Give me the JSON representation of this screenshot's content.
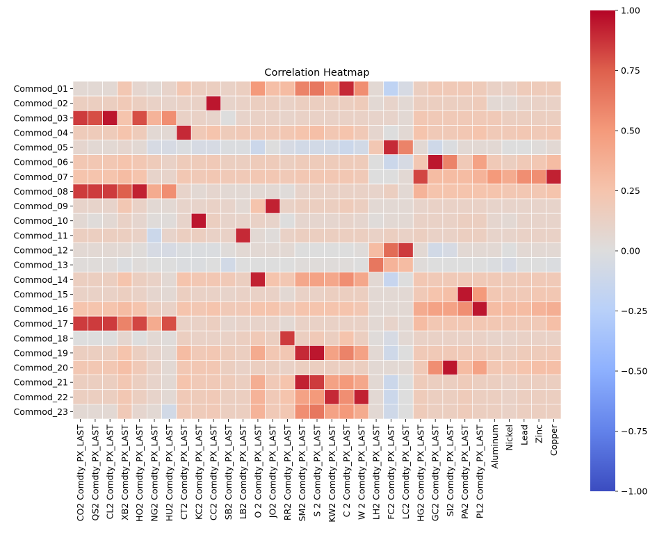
{
  "chart_data": {
    "type": "heatmap",
    "title": "Correlation Heatmap",
    "xlabel": "",
    "ylabel": "",
    "colormap": "coolwarm",
    "vmin": -1.0,
    "vmax": 1.0,
    "colorbar_ticks": [
      "1.00",
      "0.75",
      "0.50",
      "0.25",
      "0.00",
      "−0.25",
      "−0.50",
      "−0.75",
      "−1.00"
    ],
    "colorbar_tick_values": [
      1.0,
      0.75,
      0.5,
      0.25,
      0.0,
      -0.25,
      -0.5,
      -0.75,
      -1.0
    ],
    "rows": [
      "Commod_01",
      "Commod_02",
      "Commod_03",
      "Commod_04",
      "Commod_05",
      "Commod_06",
      "Commod_07",
      "Commod_08",
      "Commod_09",
      "Commod_10",
      "Commod_11",
      "Commod_12",
      "Commod_13",
      "Commod_14",
      "Commod_15",
      "Commod_16",
      "Commod_17",
      "Commod_18",
      "Commod_19",
      "Commod_20",
      "Commod_21",
      "Commod_22",
      "Commod_23"
    ],
    "columns": [
      "CO2 Comdty_PX_LAST",
      "QS2 Comdty_PX_LAST",
      "CL2 Comdty_PX_LAST",
      "XB2 Comdty_PX_LAST",
      "HO2 Comdty_PX_LAST",
      "NG2 Comdty_PX_LAST",
      "HU2 Comdty_PX_LAST",
      "CT2 Comdty_PX_LAST",
      "KC2 Comdty_PX_LAST",
      "CC2 Comdty_PX_LAST",
      "SB2 Comdty_PX_LAST",
      "LB2 Comdty_PX_LAST",
      "O 2 Comdty_PX_LAST",
      "JO2 Comdty_PX_LAST",
      "RR2 Comdty_PX_LAST",
      "SM2 Comdty_PX_LAST",
      "S 2 Comdty_PX_LAST",
      "KW2 Comdty_PX_LAST",
      "C 2 Comdty_PX_LAST",
      "W 2 Comdty_PX_LAST",
      "LH2 Comdty_PX_LAST",
      "FC2 Comdty_PX_LAST",
      "LC2 Comdty_PX_LAST",
      "HG2 Comdty_PX_LAST",
      "GC2 Comdty_PX_LAST",
      "SI2 Comdty_PX_LAST",
      "PA2 Comdty_PX_LAST",
      "PL2 Comdty_PX_LAST",
      "Aluminum",
      "Nickel",
      "Lead",
      "Zinc",
      "Copper"
    ],
    "values": [
      [
        0.05,
        0.05,
        0.05,
        0.22,
        0.08,
        0.05,
        0.1,
        0.22,
        0.15,
        0.15,
        0.12,
        0.15,
        0.5,
        0.28,
        0.3,
        0.6,
        0.65,
        0.5,
        0.9,
        0.55,
        0.05,
        -0.2,
        -0.05,
        0.15,
        0.2,
        0.2,
        0.2,
        0.18,
        0.12,
        0.12,
        0.18,
        0.18,
        0.18
      ],
      [
        0.15,
        0.15,
        0.15,
        0.2,
        0.15,
        0.12,
        0.1,
        0.12,
        0.12,
        0.95,
        0.1,
        0.12,
        0.15,
        0.15,
        0.12,
        0.15,
        0.15,
        0.15,
        0.15,
        0.18,
        0.05,
        0.1,
        0.05,
        0.15,
        0.15,
        0.15,
        0.15,
        0.18,
        0.05,
        0.05,
        0.1,
        0.12,
        0.12
      ],
      [
        0.85,
        0.8,
        0.95,
        0.25,
        0.8,
        0.35,
        0.55,
        0.12,
        0.12,
        0.1,
        0.0,
        0.1,
        0.12,
        0.12,
        0.1,
        0.12,
        0.12,
        0.12,
        0.12,
        0.12,
        0.1,
        0.1,
        0.05,
        0.22,
        0.2,
        0.2,
        0.2,
        0.2,
        0.2,
        0.15,
        0.15,
        0.15,
        0.15
      ],
      [
        0.18,
        0.18,
        0.18,
        0.25,
        0.18,
        0.05,
        0.05,
        0.9,
        0.2,
        0.25,
        0.18,
        0.2,
        0.2,
        0.2,
        0.22,
        0.25,
        0.28,
        0.22,
        0.25,
        0.2,
        0.08,
        0.0,
        0.05,
        0.25,
        0.2,
        0.2,
        0.22,
        0.25,
        0.2,
        0.2,
        0.22,
        0.2,
        0.22
      ],
      [
        0.08,
        0.05,
        0.05,
        0.08,
        0.05,
        -0.05,
        -0.05,
        -0.02,
        -0.05,
        -0.05,
        -0.02,
        -0.02,
        -0.12,
        0.0,
        -0.05,
        -0.08,
        -0.08,
        -0.08,
        -0.12,
        -0.08,
        0.22,
        0.9,
        0.6,
        0.05,
        -0.1,
        -0.02,
        0.05,
        0.05,
        0.05,
        0.0,
        0.0,
        0.02,
        0.05
      ],
      [
        0.22,
        0.22,
        0.22,
        0.25,
        0.22,
        0.18,
        0.12,
        0.18,
        0.18,
        0.2,
        0.15,
        0.15,
        0.18,
        0.18,
        0.15,
        0.18,
        0.18,
        0.18,
        0.18,
        0.18,
        0.0,
        -0.12,
        -0.05,
        0.22,
        0.95,
        0.6,
        0.2,
        0.45,
        0.2,
        0.15,
        0.2,
        0.22,
        0.3
      ],
      [
        0.25,
        0.25,
        0.25,
        0.3,
        0.25,
        0.1,
        0.1,
        0.22,
        0.2,
        0.22,
        0.2,
        0.2,
        0.22,
        0.22,
        0.2,
        0.22,
        0.22,
        0.22,
        0.22,
        0.2,
        0.0,
        0.0,
        0.05,
        0.82,
        0.3,
        0.3,
        0.3,
        0.35,
        0.5,
        0.4,
        0.55,
        0.55,
        0.92
      ],
      [
        0.85,
        0.85,
        0.85,
        0.75,
        0.92,
        0.4,
        0.55,
        0.1,
        0.05,
        0.08,
        0.05,
        0.05,
        0.05,
        0.05,
        0.02,
        0.1,
        0.12,
        0.12,
        0.12,
        0.12,
        0.1,
        0.15,
        0.05,
        0.35,
        0.25,
        0.25,
        0.25,
        0.25,
        0.25,
        0.22,
        0.22,
        0.22,
        0.25
      ],
      [
        0.1,
        0.1,
        0.1,
        0.22,
        0.12,
        0.05,
        0.05,
        0.1,
        0.1,
        0.12,
        0.1,
        0.05,
        0.25,
        0.92,
        0.12,
        0.15,
        0.15,
        0.15,
        0.18,
        0.15,
        0.05,
        0.05,
        0.05,
        0.1,
        0.12,
        0.12,
        0.12,
        0.12,
        0.1,
        0.1,
        0.1,
        0.1,
        0.1
      ],
      [
        0.05,
        0.02,
        0.05,
        0.12,
        0.08,
        0.02,
        0.02,
        0.1,
        0.95,
        0.15,
        0.1,
        0.1,
        0.12,
        0.1,
        0.0,
        0.08,
        0.08,
        0.08,
        0.1,
        0.08,
        0.02,
        0.05,
        0.05,
        0.12,
        0.12,
        0.12,
        0.15,
        0.15,
        0.08,
        0.05,
        0.1,
        0.1,
        0.1
      ],
      [
        0.15,
        0.15,
        0.15,
        0.15,
        0.12,
        -0.12,
        0.1,
        0.15,
        0.15,
        0.12,
        0.12,
        0.9,
        0.05,
        0.02,
        0.12,
        0.15,
        0.15,
        0.15,
        0.15,
        0.15,
        0.12,
        0.15,
        0.12,
        0.15,
        0.12,
        0.12,
        0.15,
        0.15,
        0.1,
        0.1,
        0.12,
        0.12,
        0.12
      ],
      [
        0.05,
        0.05,
        0.05,
        0.05,
        0.02,
        -0.05,
        -0.05,
        -0.02,
        -0.02,
        -0.02,
        0.02,
        0.05,
        0.05,
        0.05,
        0.05,
        0.0,
        0.0,
        0.0,
        0.0,
        0.02,
        0.3,
        0.7,
        0.85,
        0.05,
        -0.08,
        -0.05,
        0.05,
        0.05,
        0.05,
        0.0,
        0.05,
        0.05,
        0.05
      ],
      [
        0.02,
        0.02,
        0.02,
        -0.02,
        0.02,
        0.0,
        0.0,
        -0.02,
        -0.02,
        0.0,
        -0.08,
        0.0,
        0.0,
        0.0,
        0.0,
        0.02,
        0.02,
        0.02,
        0.02,
        0.0,
        0.65,
        0.35,
        0.3,
        0.02,
        0.0,
        0.0,
        0.0,
        0.0,
        -0.02,
        -0.05,
        0.0,
        0.0,
        -0.02
      ],
      [
        0.15,
        0.15,
        0.15,
        0.25,
        0.15,
        0.12,
        0.05,
        0.25,
        0.22,
        0.22,
        0.2,
        0.15,
        0.92,
        0.25,
        0.22,
        0.42,
        0.45,
        0.42,
        0.55,
        0.42,
        0.05,
        -0.15,
        0.0,
        0.22,
        0.2,
        0.2,
        0.2,
        0.2,
        0.2,
        0.18,
        0.2,
        0.2,
        0.2
      ],
      [
        0.12,
        0.12,
        0.12,
        0.15,
        0.12,
        0.08,
        0.05,
        0.15,
        0.12,
        0.12,
        0.1,
        0.12,
        0.12,
        0.12,
        0.05,
        0.12,
        0.12,
        0.15,
        0.15,
        0.15,
        0.05,
        0.05,
        0.05,
        0.2,
        0.25,
        0.28,
        0.95,
        0.5,
        0.22,
        0.2,
        0.2,
        0.22,
        0.22
      ],
      [
        0.25,
        0.25,
        0.25,
        0.3,
        0.25,
        0.15,
        0.12,
        0.25,
        0.22,
        0.25,
        0.2,
        0.2,
        0.25,
        0.25,
        0.2,
        0.25,
        0.25,
        0.25,
        0.25,
        0.22,
        0.05,
        0.05,
        0.05,
        0.4,
        0.45,
        0.45,
        0.55,
        0.95,
        0.3,
        0.3,
        0.3,
        0.35,
        0.38
      ],
      [
        0.85,
        0.85,
        0.85,
        0.6,
        0.82,
        0.4,
        0.8,
        0.12,
        0.12,
        0.15,
        0.08,
        0.1,
        0.1,
        0.1,
        0.05,
        0.12,
        0.12,
        0.12,
        0.12,
        0.12,
        0.05,
        0.1,
        0.05,
        0.3,
        0.22,
        0.22,
        0.22,
        0.22,
        0.22,
        0.2,
        0.2,
        0.2,
        0.28
      ],
      [
        0.0,
        0.0,
        0.0,
        0.08,
        0.0,
        0.05,
        0.02,
        0.15,
        0.12,
        0.12,
        0.12,
        0.15,
        0.2,
        0.15,
        0.85,
        0.15,
        0.2,
        0.15,
        0.25,
        0.15,
        0.02,
        -0.05,
        0.05,
        0.12,
        0.12,
        0.12,
        0.12,
        0.12,
        0.1,
        0.1,
        0.12,
        0.12,
        0.12
      ],
      [
        0.15,
        0.15,
        0.15,
        0.25,
        0.15,
        0.1,
        0.05,
        0.3,
        0.2,
        0.22,
        0.18,
        0.15,
        0.4,
        0.22,
        0.22,
        0.9,
        0.95,
        0.45,
        0.6,
        0.45,
        0.05,
        -0.1,
        0.0,
        0.2,
        0.2,
        0.2,
        0.2,
        0.2,
        0.18,
        0.15,
        0.18,
        0.18,
        0.2
      ],
      [
        0.22,
        0.22,
        0.22,
        0.28,
        0.2,
        0.12,
        0.05,
        0.22,
        0.22,
        0.22,
        0.15,
        0.12,
        0.15,
        0.15,
        0.12,
        0.15,
        0.15,
        0.15,
        0.15,
        0.15,
        0.05,
        0.05,
        0.05,
        0.2,
        0.55,
        0.95,
        0.3,
        0.45,
        0.22,
        0.22,
        0.25,
        0.28,
        0.28
      ],
      [
        0.15,
        0.15,
        0.15,
        0.22,
        0.15,
        0.1,
        0.05,
        0.25,
        0.2,
        0.2,
        0.18,
        0.15,
        0.38,
        0.2,
        0.25,
        0.92,
        0.85,
        0.45,
        0.5,
        0.42,
        0.05,
        -0.12,
        0.0,
        0.18,
        0.15,
        0.15,
        0.18,
        0.15,
        0.15,
        0.12,
        0.15,
        0.15,
        0.15
      ],
      [
        0.15,
        0.15,
        0.15,
        0.22,
        0.15,
        0.1,
        0.05,
        0.2,
        0.18,
        0.2,
        0.15,
        0.15,
        0.35,
        0.2,
        0.25,
        0.45,
        0.5,
        0.9,
        0.55,
        0.92,
        0.05,
        -0.12,
        0.0,
        0.18,
        0.15,
        0.15,
        0.18,
        0.15,
        0.15,
        0.12,
        0.15,
        0.15,
        0.15
      ],
      [
        0.05,
        0.05,
        0.05,
        0.2,
        0.08,
        0.05,
        -0.08,
        0.2,
        0.18,
        0.2,
        0.15,
        0.15,
        0.35,
        0.2,
        0.22,
        0.55,
        0.65,
        0.45,
        0.5,
        0.4,
        0.05,
        -0.1,
        0.0,
        0.18,
        0.15,
        0.15,
        0.18,
        0.15,
        0.15,
        0.12,
        0.15,
        0.15,
        0.15
      ]
    ]
  }
}
